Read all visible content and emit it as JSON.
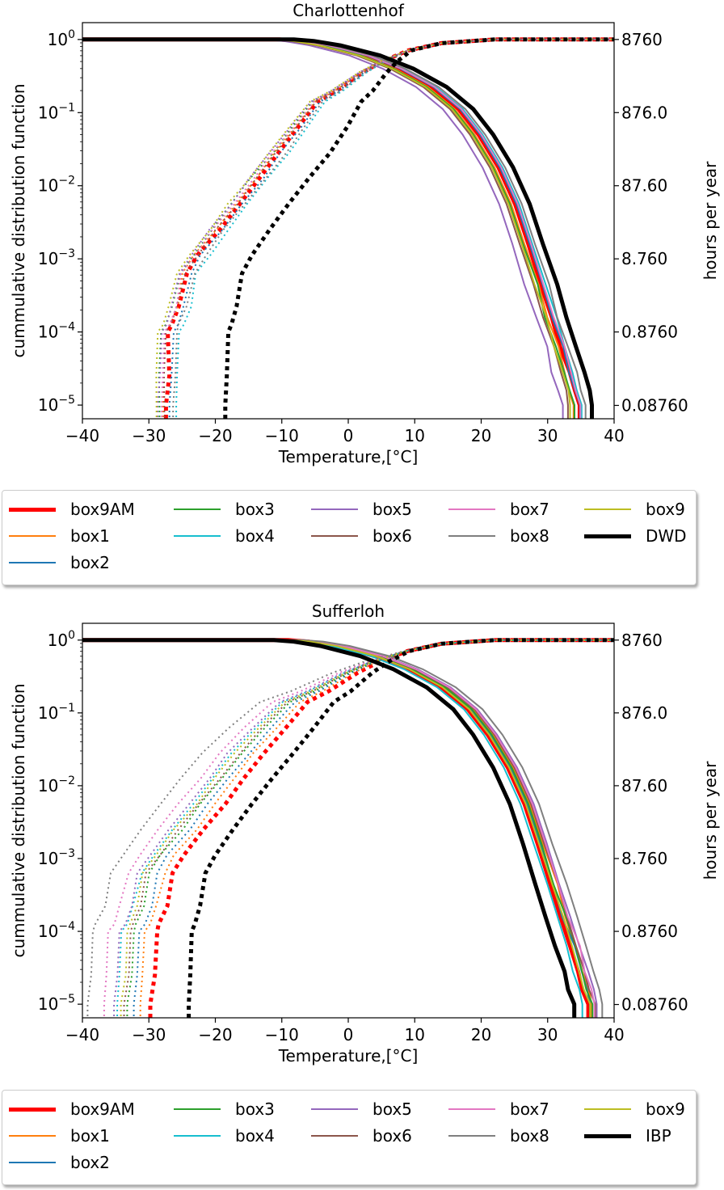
{
  "chart_data": [
    {
      "type": "line",
      "title": "Charlottenhof",
      "xlabel": "Temperature,[°C]",
      "ylabel": "cummulative distribution function",
      "y2label": "hours per year",
      "xlim": [
        -40,
        40
      ],
      "ylim": [
        6.5e-06,
        1.7
      ],
      "yscale": "log",
      "xticks": [
        -40,
        -30,
        -20,
        -10,
        0,
        10,
        20,
        30,
        40
      ],
      "xtick_labels": [
        "−40",
        "−30",
        "−20",
        "−10",
        "0",
        "10",
        "20",
        "30",
        "40"
      ],
      "yticks": [
        1e-05,
        0.0001,
        0.001,
        0.01,
        0.1,
        1
      ],
      "ytick_bases": [
        "10",
        "10",
        "10",
        "10",
        "10",
        "10"
      ],
      "ytick_exps": [
        "−5",
        "−4",
        "−3",
        "−2",
        "−1",
        "0"
      ],
      "y2ticks": [
        9.9e-06,
        0.0001,
        0.001,
        0.01,
        0.1,
        1
      ],
      "y2tick_labels": [
        "0.08760",
        "0.8760",
        "8.760",
        "87.60",
        "876.0",
        "8760"
      ],
      "ref_series": "DWD",
      "series": [
        {
          "name": "box9AM",
          "color": "#ff0000",
          "width": 5,
          "cdf_low": -27.5,
          "exc_high": 34.6
        },
        {
          "name": "box1",
          "color": "#ff7f0e",
          "width": 2,
          "cdf_low": -28.0,
          "exc_high": 34.0
        },
        {
          "name": "box2",
          "color": "#1f77b4",
          "width": 2,
          "cdf_low": -27.0,
          "exc_high": 34.8
        },
        {
          "name": "box3",
          "color": "#2ca02c",
          "width": 2,
          "cdf_low": -28.5,
          "exc_high": 33.8
        },
        {
          "name": "box4",
          "color": "#17becf",
          "width": 2,
          "cdf_low": -26.0,
          "exc_high": 35.2
        },
        {
          "name": "box5",
          "color": "#9467bd",
          "width": 2,
          "cdf_low": -28.8,
          "exc_high": 32.2
        },
        {
          "name": "box6",
          "color": "#8c564b",
          "width": 2,
          "cdf_low": -27.8,
          "exc_high": 33.3
        },
        {
          "name": "box7",
          "color": "#e377c2",
          "width": 2,
          "cdf_low": -28.2,
          "exc_high": 35.0
        },
        {
          "name": "box8",
          "color": "#7f7f7f",
          "width": 2,
          "cdf_low": -26.5,
          "exc_high": 35.6
        },
        {
          "name": "box9",
          "color": "#bcbd22",
          "width": 2,
          "cdf_low": -29.0,
          "exc_high": 33.6
        },
        {
          "name": "DWD",
          "color": "#000000",
          "width": 5,
          "cdf_low": -18.5,
          "exc_high": 36.8
        }
      ]
    },
    {
      "type": "line",
      "title": "Sufferloh",
      "xlabel": "Temperature,[°C]",
      "ylabel": "cummulative distribution function",
      "y2label": "hours per year",
      "xlim": [
        -40,
        40
      ],
      "ylim": [
        6.5e-06,
        1.7
      ],
      "yscale": "log",
      "xticks": [
        -40,
        -30,
        -20,
        -10,
        0,
        10,
        20,
        30,
        40
      ],
      "xtick_labels": [
        "−40",
        "−30",
        "−20",
        "−10",
        "0",
        "10",
        "20",
        "30",
        "40"
      ],
      "yticks": [
        1e-05,
        0.0001,
        0.001,
        0.01,
        0.1,
        1
      ],
      "ytick_bases": [
        "10",
        "10",
        "10",
        "10",
        "10",
        "10"
      ],
      "ytick_exps": [
        "−5",
        "−4",
        "−3",
        "−2",
        "−1",
        "0"
      ],
      "y2ticks": [
        9.9e-06,
        0.0001,
        0.001,
        0.01,
        0.1,
        1
      ],
      "y2tick_labels": [
        "0.08760",
        "0.8760",
        "8.760",
        "87.60",
        "876.0",
        "8760"
      ],
      "ref_series": "IBP",
      "series": [
        {
          "name": "box9AM",
          "color": "#ff0000",
          "width": 5,
          "cdf_low": -29.5,
          "exc_high": 36.0
        },
        {
          "name": "box1",
          "color": "#ff7f0e",
          "width": 2,
          "cdf_low": -31.0,
          "exc_high": 36.8
        },
        {
          "name": "box2",
          "color": "#1f77b4",
          "width": 2,
          "cdf_low": -32.0,
          "exc_high": 36.4
        },
        {
          "name": "box3",
          "color": "#2ca02c",
          "width": 2,
          "cdf_low": -33.0,
          "exc_high": 36.6
        },
        {
          "name": "box4",
          "color": "#17becf",
          "width": 2,
          "cdf_low": -34.5,
          "exc_high": 35.4
        },
        {
          "name": "box5",
          "color": "#9467bd",
          "width": 2,
          "cdf_low": -35.0,
          "exc_high": 37.4
        },
        {
          "name": "box6",
          "color": "#8c564b",
          "width": 2,
          "cdf_low": -33.5,
          "exc_high": 37.0
        },
        {
          "name": "box7",
          "color": "#e377c2",
          "width": 2,
          "cdf_low": -36.5,
          "exc_high": 37.2
        },
        {
          "name": "box8",
          "color": "#7f7f7f",
          "width": 2,
          "cdf_low": -39.0,
          "exc_high": 38.2
        },
        {
          "name": "box9",
          "color": "#bcbd22",
          "width": 2,
          "cdf_low": -34.0,
          "exc_high": 36.2
        },
        {
          "name": "IBP",
          "color": "#000000",
          "width": 5,
          "cdf_low": -24.0,
          "exc_high": 33.8
        }
      ]
    }
  ],
  "legend_top": {
    "placement": "below-plot",
    "columns": [
      [
        "box9AM",
        "box1",
        "box2"
      ],
      [
        "box3",
        "box4"
      ],
      [
        "box5",
        "box6"
      ],
      [
        "box7",
        "box8"
      ],
      [
        "box9",
        "DWD"
      ]
    ]
  },
  "legend_bottom": {
    "placement": "below-plot",
    "columns": [
      [
        "box9AM",
        "box1",
        "box2"
      ],
      [
        "box3",
        "box4"
      ],
      [
        "box5",
        "box6"
      ],
      [
        "box7",
        "box8"
      ],
      [
        "box9",
        "IBP"
      ]
    ]
  }
}
